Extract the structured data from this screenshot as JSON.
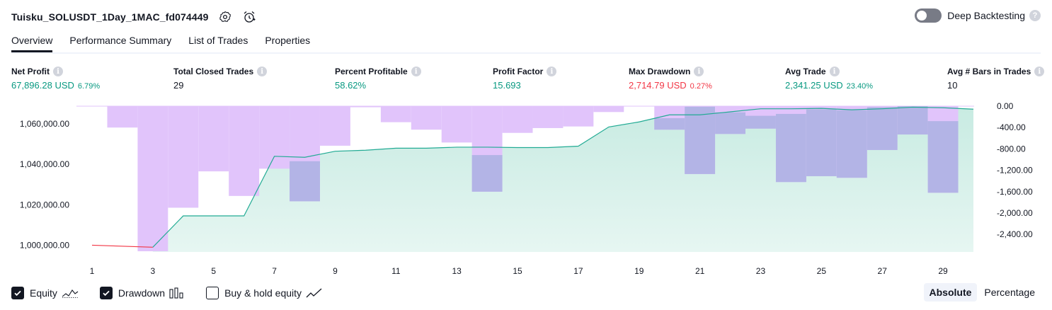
{
  "header": {
    "title": "Tuisku_SOLUSDT_1Day_1MAC_fd074449",
    "deep_backtesting_label": "Deep Backtesting"
  },
  "tabs": [
    "Overview",
    "Performance Summary",
    "List of Trades",
    "Properties"
  ],
  "metrics": [
    {
      "label": "Net Profit",
      "value": "67,896.28 USD",
      "sub": "6.79%",
      "tone": "pos"
    },
    {
      "label": "Total Closed Trades",
      "value": "29",
      "sub": "",
      "tone": "neu"
    },
    {
      "label": "Percent Profitable",
      "value": "58.62%",
      "sub": "",
      "tone": "pos"
    },
    {
      "label": "Profit Factor",
      "value": "15.693",
      "sub": "",
      "tone": "pos"
    },
    {
      "label": "Max Drawdown",
      "value": "2,714.79 USD",
      "sub": "0.27%",
      "tone": "neg"
    },
    {
      "label": "Avg Trade",
      "value": "2,341.25 USD",
      "sub": "23.40%",
      "tone": "pos"
    },
    {
      "label": "Avg # Bars in Trades",
      "value": "10",
      "sub": "",
      "tone": "neu"
    }
  ],
  "legend": {
    "equity": "Equity",
    "drawdown": "Drawdown",
    "buy_hold": "Buy & hold equity",
    "equity_checked": true,
    "drawdown_checked": true,
    "buy_hold_checked": false
  },
  "modes": {
    "absolute": "Absolute",
    "percentage": "Percentage",
    "active": "Absolute"
  },
  "colors": {
    "equity_line": "#22ab94",
    "equity_fill": "#c8ebe2",
    "loss_line": "#f23645",
    "drawdown_bar": "#e1c4fb",
    "overlap_bar": "#b3b4e6",
    "positive": "#089981",
    "negative": "#f23645"
  },
  "chart_data": {
    "type": "line",
    "x_ticks": [
      1,
      3,
      5,
      7,
      9,
      11,
      13,
      15,
      17,
      19,
      21,
      23,
      25,
      27,
      29
    ],
    "xlim": [
      0.3,
      30
    ],
    "equity": {
      "name": "Equity",
      "x": [
        1,
        3,
        4,
        5,
        6,
        7,
        8,
        9,
        10,
        11,
        12,
        13,
        14,
        15,
        16,
        17,
        18,
        19,
        20,
        21,
        22,
        23,
        24,
        25,
        26,
        27,
        28,
        29,
        30
      ],
      "values": [
        1000000,
        999000,
        1014500,
        1014500,
        1014500,
        1044000,
        1043500,
        1046500,
        1047000,
        1048000,
        1048000,
        1048500,
        1048500,
        1048300,
        1048300,
        1049000,
        1058500,
        1061000,
        1064500,
        1064500,
        1066000,
        1067500,
        1067500,
        1067700,
        1067000,
        1067500,
        1068300,
        1068000,
        1067300
      ]
    },
    "equity_axis": {
      "ticks": [
        1000000,
        1020000,
        1040000,
        1060000
      ],
      "tick_labels": [
        "1,000,000.00",
        "1,020,000.00",
        "1,040,000.00",
        "1,060,000.00"
      ],
      "ylim": [
        997000,
        1068800
      ]
    },
    "drawdown": {
      "name": "Drawdown",
      "x": [
        1,
        2,
        3,
        4,
        5,
        6,
        7,
        8,
        9,
        10,
        11,
        12,
        13,
        14,
        15,
        16,
        17,
        18,
        19,
        20,
        21,
        22,
        23,
        24,
        25,
        26,
        27,
        28,
        29,
        30
      ],
      "values": [
        0,
        -400,
        -2714.79,
        -1900,
        -1220,
        -1680,
        -1170,
        -1780,
        -740,
        -20,
        -300,
        -440,
        -680,
        -1600,
        -500,
        -410,
        -380,
        -110,
        0,
        -440,
        -1270,
        -520,
        -420,
        -1420,
        -1310,
        -1340,
        -820,
        -530,
        -1620,
        0
      ],
      "overlap_from": [
        null,
        null,
        null,
        null,
        null,
        null,
        null,
        1030,
        null,
        null,
        null,
        null,
        null,
        915,
        null,
        null,
        null,
        null,
        null,
        225,
        10,
        115,
        180,
        145,
        60,
        75,
        20,
        0,
        280,
        null
      ]
    },
    "drawdown_axis": {
      "ticks": [
        0,
        -400,
        -800,
        -1200,
        -1600,
        -2000,
        -2400
      ],
      "tick_labels": [
        "0.00",
        "-400.00",
        "-800.00",
        "-1,200.00",
        "-1,600.00",
        "-2,000.00",
        "-2,400.00"
      ],
      "ylim": [
        -2714.79,
        0
      ]
    },
    "grid": false,
    "legend_position": "bottom-left"
  }
}
